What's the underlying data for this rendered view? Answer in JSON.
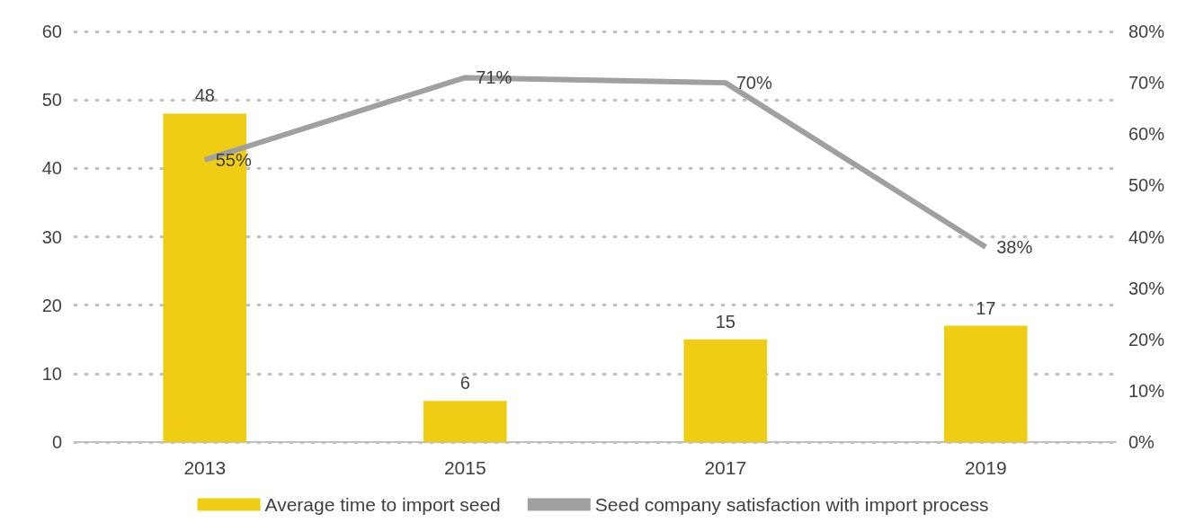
{
  "chart_data": {
    "type": "bar",
    "categories": [
      "2013",
      "2015",
      "2017",
      "2019"
    ],
    "series": [
      {
        "name": "Average time to import seed",
        "color": "#f0cd15",
        "values": [
          48,
          6,
          15,
          17
        ],
        "value_labels": [
          "48",
          "6",
          "15",
          "17"
        ]
      },
      {
        "name": "Seed company satisfaction with import process",
        "type": "line",
        "axis": "y2",
        "color": "#a0a0a0",
        "values": [
          55,
          71,
          70,
          38
        ],
        "value_labels": [
          "55%",
          "71%",
          "70%",
          "38%"
        ],
        "marker": "none"
      }
    ],
    "ylim": [
      0,
      60
    ],
    "yticks": [
      0,
      10,
      20,
      30,
      40,
      50,
      60
    ],
    "y2lim": [
      0,
      80
    ],
    "y2ticks": [
      {
        "value": 0,
        "label": "0%"
      },
      {
        "value": 10,
        "label": "10%"
      },
      {
        "value": 20,
        "label": "20%"
      },
      {
        "value": 30,
        "label": "30%"
      },
      {
        "value": 40,
        "label": "40%"
      },
      {
        "value": 50,
        "label": "50%"
      },
      {
        "value": 60,
        "label": "60%"
      },
      {
        "value": 70,
        "label": "70%"
      },
      {
        "value": 80,
        "label": "80%"
      }
    ],
    "grid": "y",
    "legend": "bottom",
    "line_style": "solid"
  }
}
